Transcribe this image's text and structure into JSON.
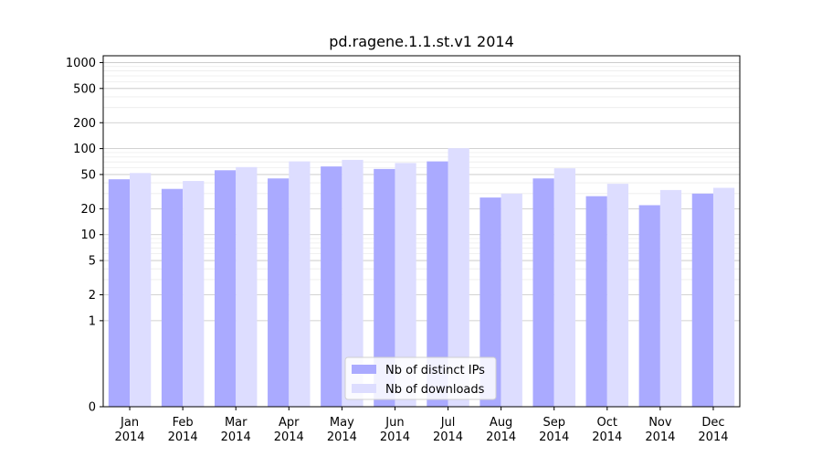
{
  "chart_data": {
    "type": "bar",
    "title": "pd.ragene.1.1.st.v1 2014",
    "xlabel": "",
    "ylabel": "",
    "categories": [
      "Jan\n2014",
      "Feb\n2014",
      "Mar\n2014",
      "Apr\n2014",
      "May\n2014",
      "Jun\n2014",
      "Jul\n2014",
      "Aug\n2014",
      "Sep\n2014",
      "Oct\n2014",
      "Nov\n2014",
      "Dec\n2014"
    ],
    "series": [
      {
        "name": "Nb of distinct IPs",
        "color": "#aaaaff",
        "values": [
          44,
          34,
          56,
          45,
          62,
          58,
          71,
          27,
          45,
          28,
          22,
          30
        ]
      },
      {
        "name": "Nb of downloads",
        "color": "#ddddff",
        "values": [
          52,
          42,
          61,
          71,
          74,
          68,
          101,
          30,
          59,
          39,
          33,
          35
        ]
      }
    ],
    "y_scale": "symlog",
    "ylim": [
      0,
      1200
    ],
    "yticks": [
      0,
      1,
      2,
      5,
      10,
      20,
      50,
      100,
      200,
      500,
      1000
    ],
    "ytick_labels": [
      "0",
      "1",
      "2",
      "5",
      "10",
      "20",
      "50",
      "100",
      "200",
      "500",
      "1000"
    ],
    "grid": true,
    "legend_position": "lower-center"
  }
}
